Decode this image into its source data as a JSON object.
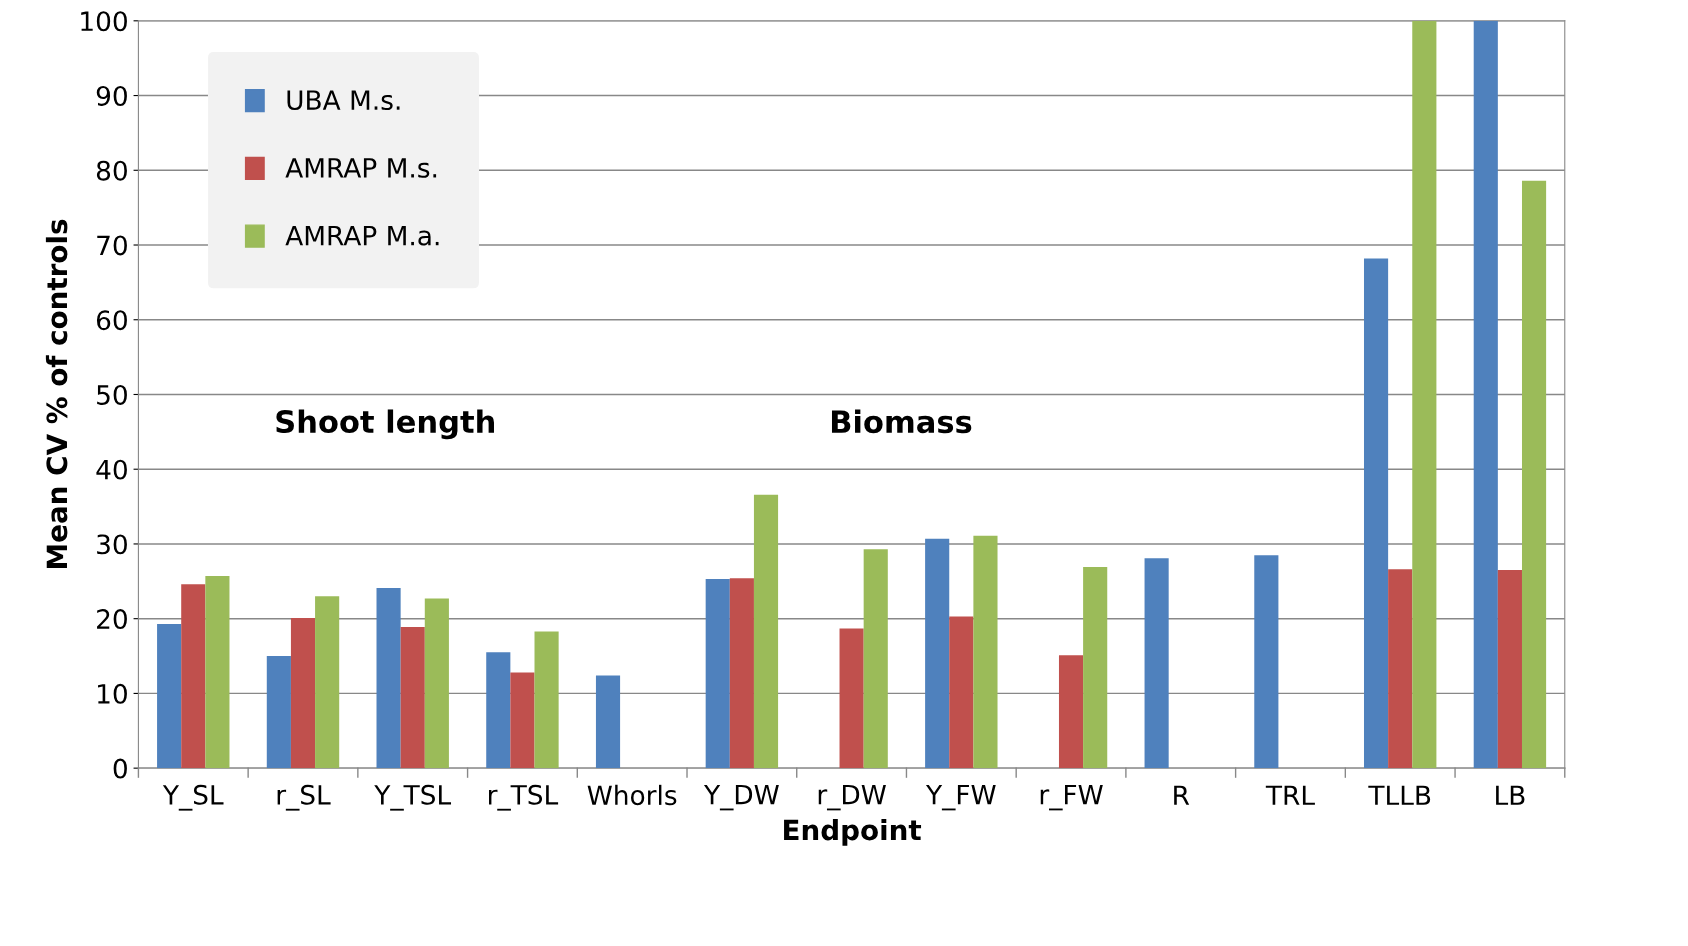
{
  "chart_data": {
    "type": "bar",
    "xlabel": "Endpoint",
    "ylabel": "Mean CV % of controls",
    "categories": [
      "Y_SL",
      "r_SL",
      "Y_TSL",
      "r_TSL",
      "Whorls",
      "Y_DW",
      "r_DW",
      "Y_FW",
      "r_FW",
      "R",
      "TRL",
      "TLLB",
      "LB"
    ],
    "series": [
      {
        "name": "UBA M.s.",
        "color": "#4f81bd",
        "values": [
          19.3,
          15.0,
          24.1,
          15.5,
          12.4,
          25.3,
          null,
          30.7,
          null,
          28.1,
          28.5,
          68.2,
          100
        ]
      },
      {
        "name": "AMRAP M.s.",
        "color": "#c0504d",
        "values": [
          24.6,
          20.1,
          18.9,
          12.8,
          null,
          25.4,
          18.7,
          20.3,
          15.1,
          null,
          null,
          26.6,
          26.5
        ]
      },
      {
        "name": "AMRAP M.a.",
        "color": "#9bbb59",
        "values": [
          25.7,
          23.0,
          22.7,
          18.3,
          null,
          36.6,
          29.3,
          31.1,
          26.9,
          null,
          null,
          100,
          78.6
        ]
      }
    ],
    "annotations": [
      "Shoot length",
      "Biomass"
    ],
    "ylim": [
      0,
      100
    ],
    "yticks": [
      0,
      10,
      20,
      30,
      40,
      50,
      60,
      70,
      80,
      90,
      100
    ],
    "grid": "y",
    "legend": "top left"
  }
}
